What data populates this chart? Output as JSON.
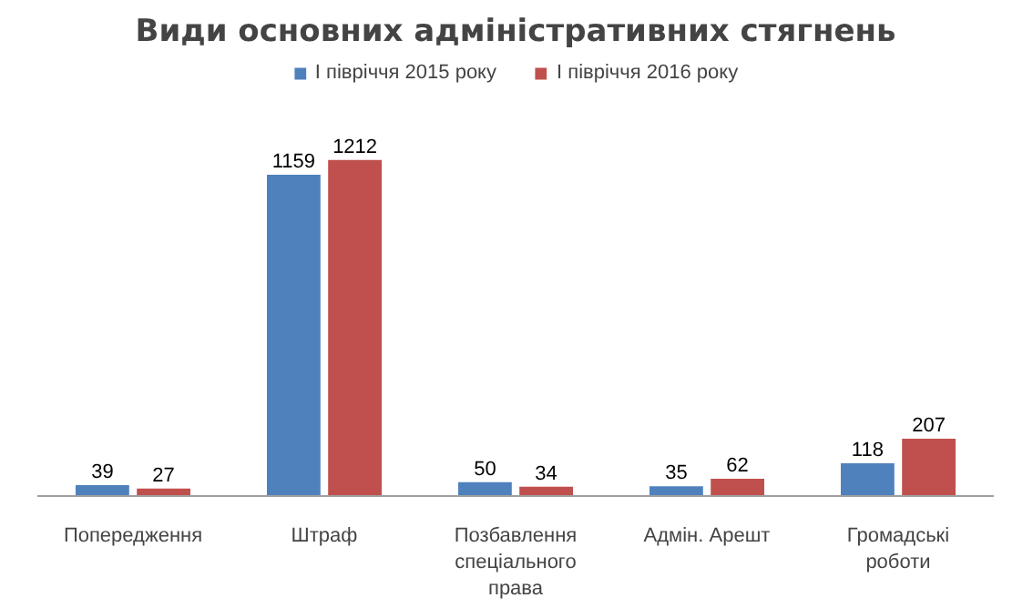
{
  "chart_data": {
    "type": "bar",
    "title": "Види основних адміністративних стягнень",
    "categories": [
      "Попередження",
      "Штраф",
      "Позбавлення\nспеціального\nправа",
      "Адмін. Арешт",
      "Громадські\nроботи"
    ],
    "series": [
      {
        "name": "І півріччя 2015 року",
        "color": "#4f81bd",
        "values": [
          39,
          1159,
          50,
          35,
          118
        ]
      },
      {
        "name": "І півріччя 2016 року",
        "color": "#c0504d",
        "values": [
          27,
          1212,
          34,
          62,
          207
        ]
      }
    ],
    "data_labels": true,
    "legend": "top"
  }
}
